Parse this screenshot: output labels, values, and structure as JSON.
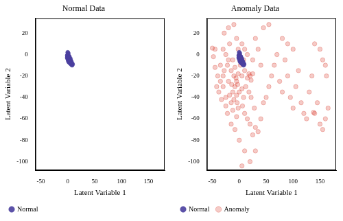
{
  "chart_data": [
    {
      "type": "scatter",
      "title": "Normal Data",
      "x_label": "Latent Variable 1",
      "y_label": "Latent Variable 2",
      "xlim": [
        -60,
        180
      ],
      "xticks": [
        -50,
        0,
        50,
        100,
        150
      ],
      "ylim": [
        -108,
        34
      ],
      "yticks": [
        -100,
        -80,
        -60,
        -40,
        -20,
        0,
        20
      ],
      "grid": false,
      "legend": "bottom",
      "series": [
        {
          "name": "Normal",
          "color": "#4a3f9f",
          "marker": "circle",
          "x": [
            0,
            1,
            2,
            -1,
            0,
            1,
            3,
            2,
            4,
            5,
            6,
            7,
            8,
            3,
            1,
            0,
            -1,
            2,
            4,
            6,
            5,
            7,
            9,
            8,
            3,
            1,
            0,
            2,
            4,
            6
          ],
          "values": [
            0,
            -1,
            -2,
            -3,
            -4,
            -5,
            -3,
            -6,
            -5,
            -7,
            -6,
            -8,
            -9,
            -2,
            1,
            2,
            -1,
            -7,
            -8,
            -9,
            -4,
            -7,
            -9,
            -10,
            -4,
            -6,
            -2,
            -3,
            -6,
            -8
          ]
        }
      ]
    },
    {
      "type": "scatter",
      "title": "Anomaly Data",
      "x_label": "Latent Variable 1",
      "y_label": "Latent Variable 2",
      "xlim": [
        -60,
        180
      ],
      "xticks": [
        -50,
        0,
        50,
        100,
        150
      ],
      "ylim": [
        -108,
        34
      ],
      "yticks": [
        -100,
        -80,
        -60,
        -40,
        -20,
        0,
        20
      ],
      "grid": false,
      "legend": "bottom",
      "series": [
        {
          "name": "Normal",
          "color": "#4a3f9f",
          "marker": "circle",
          "x": [
            0,
            1,
            2,
            -1,
            0,
            1,
            3,
            2,
            4,
            5,
            6,
            7,
            8,
            3,
            1,
            0,
            -1,
            2,
            4,
            6,
            5,
            7,
            9,
            8,
            3,
            1,
            0,
            2,
            4,
            6
          ],
          "values": [
            0,
            -1,
            -2,
            -3,
            -4,
            -5,
            -3,
            -6,
            -5,
            -7,
            -6,
            -8,
            -9,
            -2,
            1,
            2,
            -1,
            -7,
            -8,
            -9,
            -4,
            -7,
            -9,
            -10,
            -4,
            -6,
            -2,
            -3,
            -6,
            -8
          ]
        },
        {
          "name": "Anomaly",
          "color": "#d7301f",
          "marker": "circle",
          "x": [
            -10,
            -5,
            -8,
            -3,
            -12,
            -6,
            -15,
            -2,
            5,
            10,
            15,
            20,
            18,
            22,
            25,
            -20,
            -25,
            -18,
            -30,
            -35,
            -40,
            -45,
            -50,
            -28,
            -20,
            -10,
            -5,
            5,
            10,
            15,
            -30,
            -25,
            -15,
            -10,
            -5,
            0,
            5,
            8,
            -20,
            -28,
            -38,
            -42,
            -33,
            -22,
            -12,
            -2,
            10,
            15,
            20,
            25,
            30,
            35,
            40,
            28,
            45,
            50,
            55,
            60,
            65,
            70,
            75,
            80,
            85,
            90,
            95,
            100,
            105,
            110,
            115,
            120,
            125,
            130,
            135,
            138,
            140,
            145,
            150,
            155,
            160,
            165,
            140,
            150,
            155,
            160,
            162,
            100,
            90,
            80,
            55,
            45,
            30,
            35,
            40,
            25,
            5,
            10,
            0,
            -8,
            -15,
            30,
            20,
            -5,
            -25,
            -35,
            -45,
            -48,
            -18,
            -8,
            2,
            12,
            18,
            -22,
            -12,
            -2,
            8,
            -14,
            -4,
            6,
            -30,
            22
          ],
          "values": [
            -20,
            -25,
            -30,
            -28,
            -35,
            -22,
            -15,
            -18,
            -20,
            -15,
            -22,
            -20,
            -18,
            -24,
            -18,
            -5,
            0,
            10,
            5,
            -10,
            -20,
            5,
            6,
            20,
            25,
            28,
            15,
            10,
            5,
            0,
            -30,
            -40,
            -45,
            -42,
            -38,
            -35,
            -32,
            -40,
            -25,
            -15,
            -35,
            -30,
            -42,
            -55,
            -52,
            -50,
            -55,
            -60,
            -65,
            -75,
            -68,
            -72,
            -60,
            -50,
            -45,
            -40,
            -30,
            -20,
            -10,
            0,
            -25,
            -35,
            -5,
            -20,
            -40,
            -50,
            -30,
            -15,
            -45,
            -55,
            -60,
            -35,
            -20,
            -54,
            -55,
            -45,
            -65,
            -70,
            -60,
            -50,
            10,
            5,
            -5,
            -10,
            -20,
            5,
            10,
            15,
            28,
            25,
            15,
            5,
            -10,
            -5,
            -104,
            -90,
            -80,
            -70,
            -65,
            -90,
            -100,
            -58,
            -48,
            -25,
            -12,
            -2,
            -38,
            -12,
            -10,
            -30,
            -35,
            -10,
            -5,
            5,
            -5,
            -28,
            -45,
            -48,
            -20,
            -40
          ]
        }
      ]
    }
  ]
}
